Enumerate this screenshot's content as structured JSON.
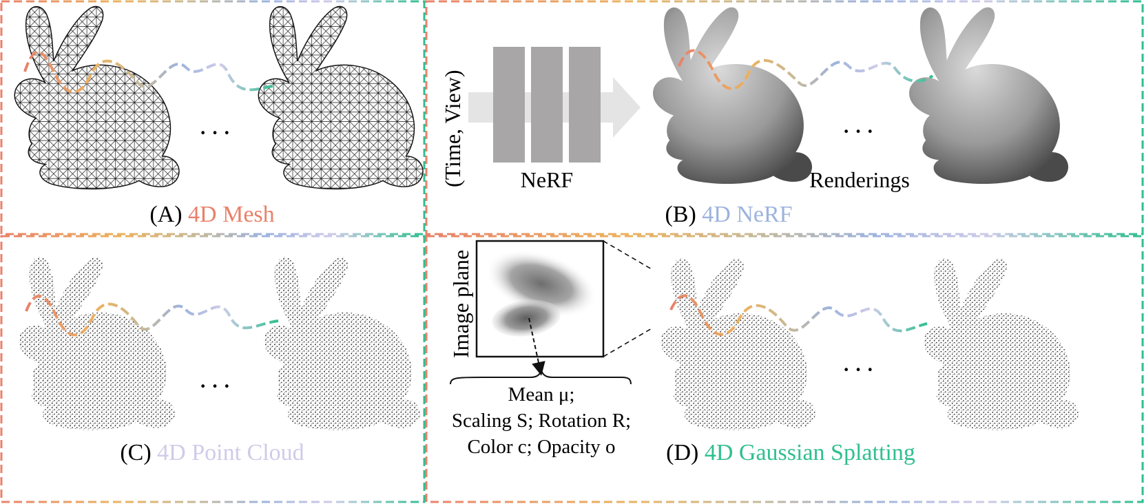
{
  "panels": {
    "a": {
      "letter": "(A)",
      "name": "4D Mesh",
      "name_color": "#e8826a"
    },
    "b": {
      "letter": "(B)",
      "name": "4D NeRF",
      "name_color": "#9db3de",
      "input_label": "(Time, View)",
      "network_label": "NeRF",
      "output_label": "Renderings"
    },
    "c": {
      "letter": "(C)",
      "name": "4D Point Cloud",
      "name_color": "#cfcbe8"
    },
    "d": {
      "letter": "(D)",
      "name": "4D Gaussian Splatting",
      "name_color": "#2fbf8f",
      "plane_label": "Image plane",
      "attr_line1": "Mean μ;",
      "attr_line2": "Scaling S; Rotation R;",
      "attr_line3": "Color c; Opacity o"
    }
  },
  "ellipsis": "···",
  "colors": {
    "trajectory": [
      "#e8826a",
      "#ecb25f",
      "#c9b994",
      "#9db3de",
      "#cfcbe8",
      "#2fbf8f"
    ],
    "border_green": "#2fbf8f",
    "border_orange": "#e8826a",
    "bar_gray": "#a8a6a6",
    "arrow_gray": "#e4e4e4"
  }
}
